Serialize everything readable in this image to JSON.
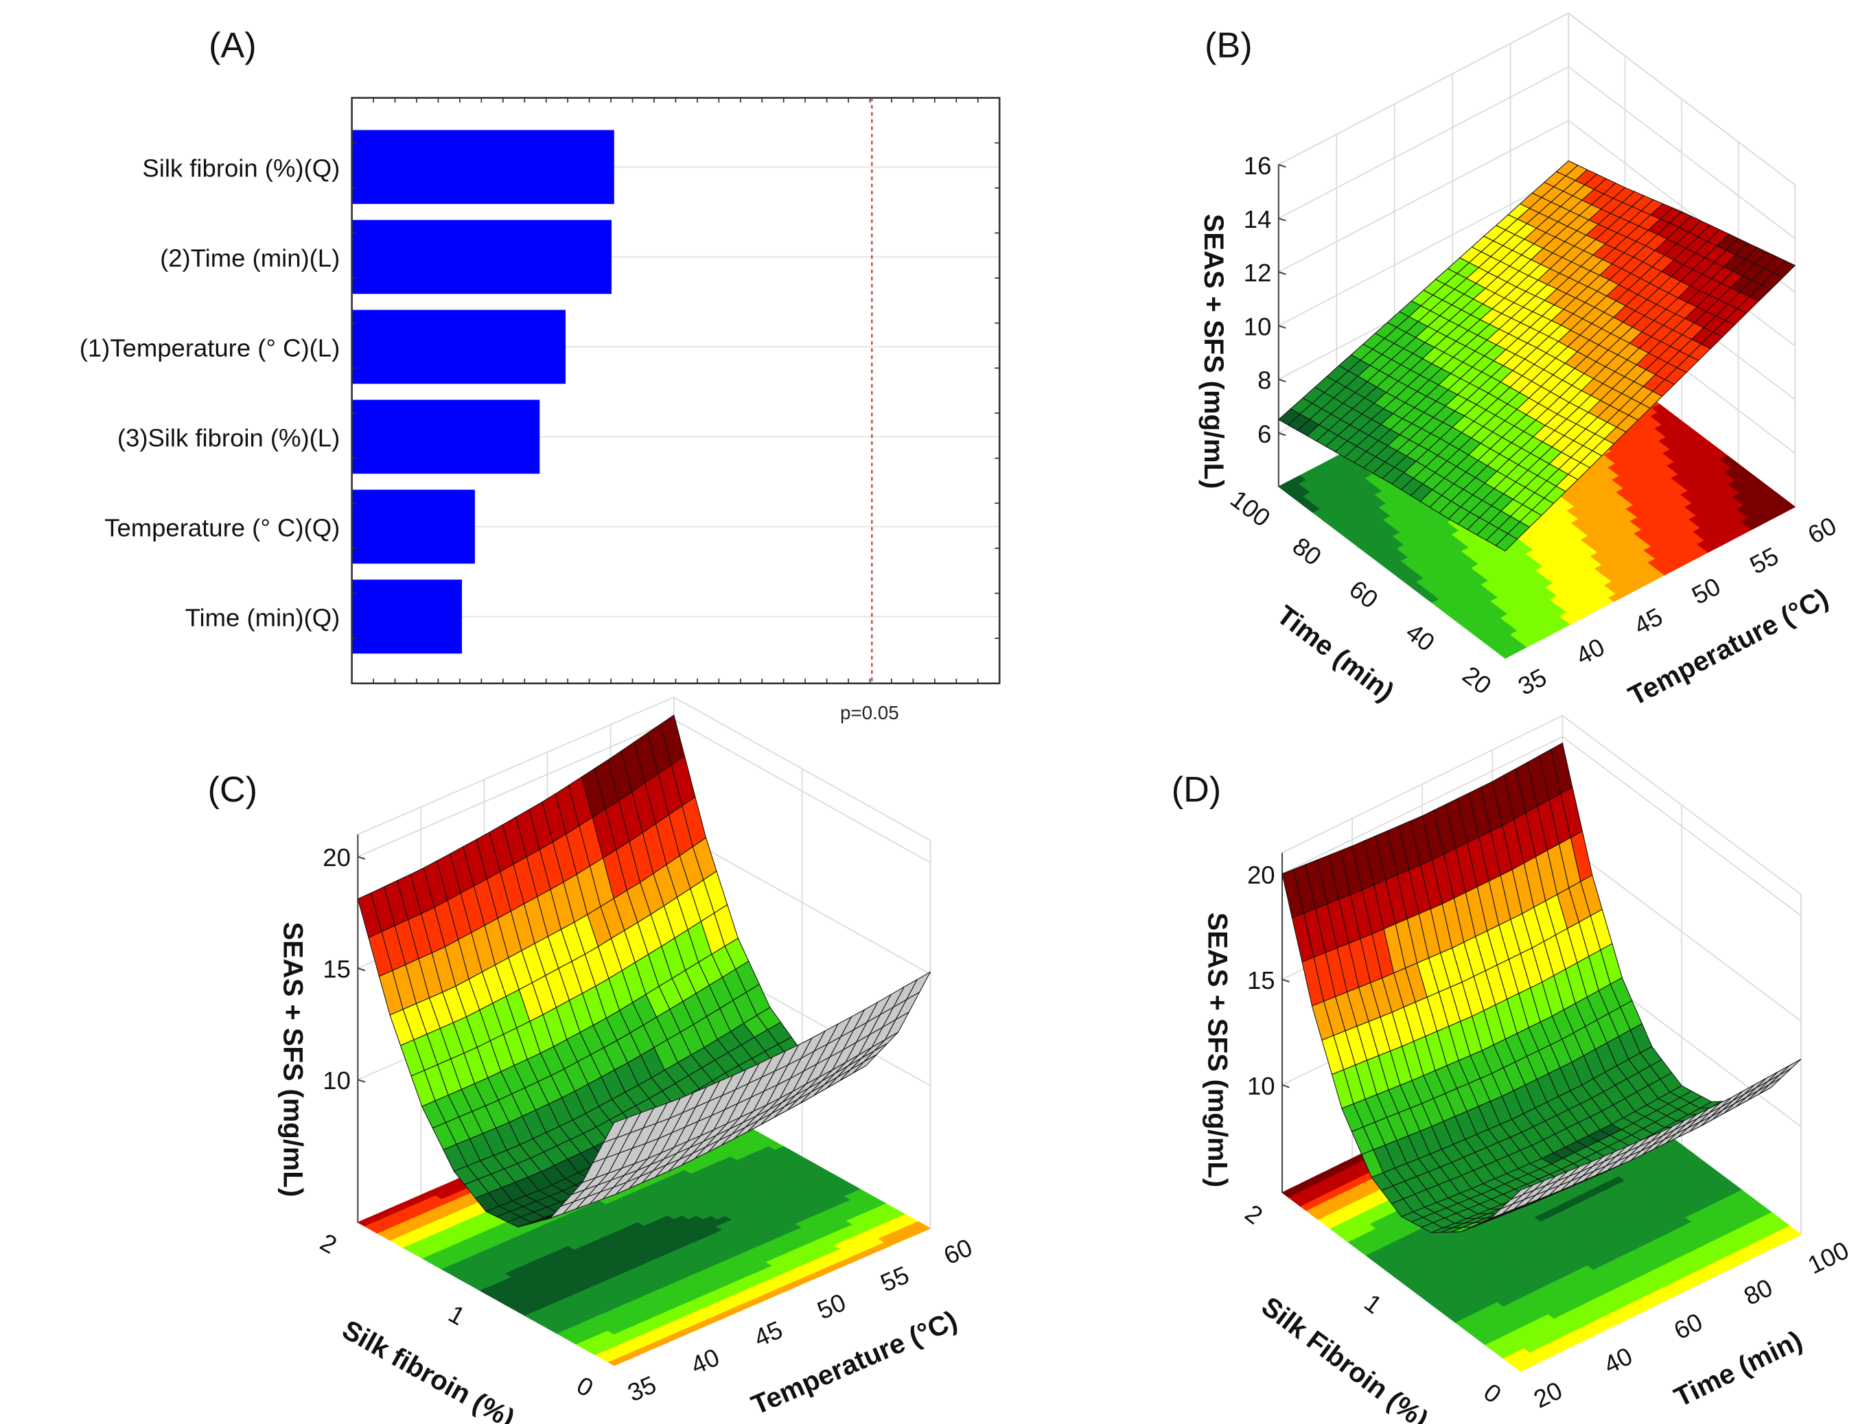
{
  "chart_data": [
    {
      "type": "bar",
      "panel": "(A)",
      "orientation": "horizontal",
      "categories": [
        "Silk fibroin (%)(Q)",
        "(2)Time (min)(L)",
        "(1)Temperature (° C)(L)",
        "(3)Silk fibroin (%)(L)",
        "Temperature (° C)(Q)",
        "Time (min)(Q)"
      ],
      "values": [
        0.405,
        0.401,
        0.33,
        0.29,
        0.19,
        0.17
      ],
      "xlim": [
        0,
        1
      ],
      "reference_line": {
        "label": "p=0.05",
        "value": 0.803
      },
      "grid": true,
      "colors": {
        "bar": "#0000ff",
        "reference": "#cc2222"
      }
    },
    {
      "type": "surface",
      "panel": "(B)",
      "xlabel": "Temperature (°C)",
      "ylabel": "Time (min)",
      "zlabel": "SEAS + SFS (mg/mL)",
      "xticks": [
        35,
        40,
        45,
        50,
        55,
        60
      ],
      "yticks": [
        20,
        40,
        60,
        80,
        100
      ],
      "zticks": [
        6,
        8,
        10,
        12,
        14,
        16
      ],
      "xlim": [
        35,
        60
      ],
      "ylim": [
        20,
        100
      ],
      "zlim": [
        4,
        16
      ],
      "color_range": [
        6,
        13
      ],
      "x_grid": [
        35,
        40,
        45,
        50,
        55,
        60
      ],
      "y_grid": [
        20,
        40,
        60,
        80,
        100
      ],
      "z_grid": [
        [
          8.0,
          9.0,
          10.0,
          11.0,
          12.0,
          13.0
        ],
        [
          7.6,
          8.6,
          9.5,
          10.5,
          11.4,
          12.4
        ],
        [
          7.3,
          8.2,
          9.1,
          10.0,
          10.9,
          11.8
        ],
        [
          6.9,
          7.7,
          8.6,
          9.4,
          10.3,
          11.1
        ],
        [
          6.5,
          7.3,
          8.1,
          8.9,
          9.7,
          10.5
        ]
      ]
    },
    {
      "type": "surface",
      "panel": "(C)",
      "xlabel": "Temperature (°C)",
      "ylabel": "Silk fibroin (%)",
      "zlabel": "SEAS + SFS (mg/mL)",
      "xticks": [
        35,
        40,
        45,
        50,
        55,
        60
      ],
      "yticks": [
        0,
        1,
        2
      ],
      "zticks": [
        10,
        15,
        20
      ],
      "xlim": [
        35,
        60
      ],
      "ylim": [
        0,
        2
      ],
      "zlim": [
        3.6,
        21
      ],
      "color_range": [
        6,
        20
      ],
      "x_grid": [
        35,
        40,
        45,
        50,
        55,
        60
      ],
      "y_grid": [
        0,
        0.25,
        0.5,
        0.75,
        1,
        1.25,
        1.5,
        1.75,
        2
      ],
      "z_grid": [
        [
          14.5,
          14.3,
          14.3,
          14.4,
          14.7,
          15.1
        ],
        [
          11.0,
          10.8,
          10.8,
          10.9,
          11.2,
          11.6
        ],
        [
          8.6,
          8.4,
          8.4,
          8.6,
          8.9,
          9.3
        ],
        [
          7.4,
          7.2,
          7.3,
          7.4,
          7.8,
          8.2
        ],
        [
          7.3,
          7.2,
          7.3,
          7.6,
          8.1,
          8.3
        ],
        [
          8.3,
          8.2,
          8.3,
          8.6,
          9.0,
          9.5
        ],
        [
          10.4,
          10.4,
          10.5,
          10.8,
          11.3,
          11.8
        ],
        [
          13.7,
          13.7,
          14.0,
          14.3,
          14.8,
          15.5
        ],
        [
          18.1,
          18.2,
          18.5,
          18.9,
          19.5,
          20.2
        ]
      ]
    },
    {
      "type": "surface",
      "panel": "(D)",
      "xlabel": "Time (min)",
      "ylabel": "Silk Fibroin (%)",
      "zlabel": "SEAS + SFS (mg/mL)",
      "xticks": [
        20,
        40,
        60,
        80,
        100
      ],
      "yticks": [
        0,
        1,
        2
      ],
      "zticks": [
        10,
        15,
        20
      ],
      "xlim": [
        20,
        100
      ],
      "ylim": [
        0,
        2
      ],
      "zlim": [
        4.9,
        21
      ],
      "color_range": [
        6,
        20
      ],
      "x_grid": [
        20,
        40,
        60,
        80,
        100
      ],
      "y_grid": [
        0,
        0.25,
        0.5,
        0.75,
        1,
        1.25,
        1.5,
        1.75,
        2
      ],
      "z_grid": [
        [
          13.5,
          13.2,
          13.0,
          13.0,
          13.2
        ],
        [
          11.1,
          10.8,
          10.6,
          10.6,
          10.8
        ],
        [
          9.4,
          9.1,
          8.9,
          8.9,
          9.1
        ],
        [
          8.3,
          8.0,
          7.8,
          7.8,
          8.0
        ],
        [
          8.0,
          7.7,
          7.5,
          7.5,
          7.7
        ],
        [
          8.8,
          8.5,
          8.3,
          8.3,
          8.5
        ],
        [
          11.0,
          10.7,
          10.5,
          10.5,
          10.7
        ],
        [
          14.8,
          14.5,
          14.3,
          14.3,
          14.5
        ],
        [
          20.0,
          19.7,
          19.5,
          19.5,
          19.7
        ]
      ]
    }
  ],
  "colormap": [
    "#0a5a23",
    "#168f2a",
    "#2fc81a",
    "#7cfc00",
    "#ffff00",
    "#ffa500",
    "#ff3300",
    "#c00000",
    "#7a0000"
  ],
  "underside_color": "#c9c9c9"
}
